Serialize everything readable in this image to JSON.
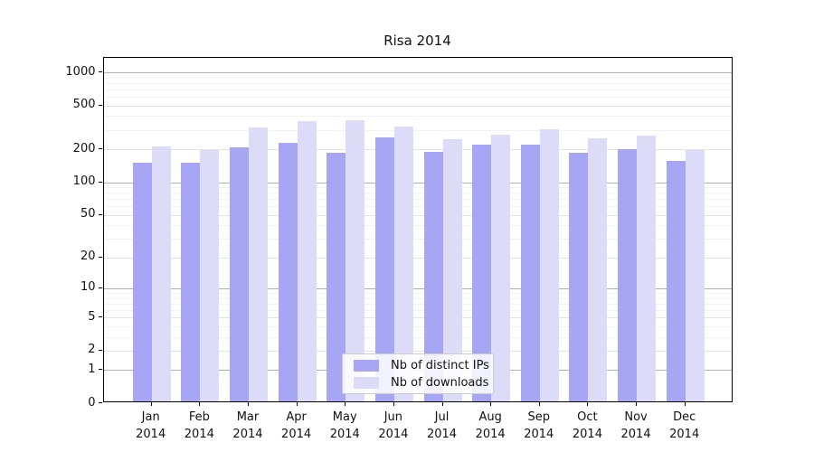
{
  "chart_data": {
    "type": "bar",
    "title": "Risa 2014",
    "categories": [
      "Jan",
      "Feb",
      "Mar",
      "Apr",
      "May",
      "Jun",
      "Jul",
      "Aug",
      "Sep",
      "Oct",
      "Nov",
      "Dec"
    ],
    "x_year": "2014",
    "series": [
      {
        "name": "Nb of distinct IPs",
        "color": "#a6a6f4",
        "values": [
          146,
          146,
          200,
          220,
          180,
          245,
          181,
          213,
          213,
          180,
          194,
          150
        ]
      },
      {
        "name": "Nb of downloads",
        "color": "#dcdcf9",
        "values": [
          203,
          188,
          303,
          345,
          356,
          310,
          239,
          263,
          293,
          242,
          258,
          188
        ]
      }
    ],
    "yscale": "log10(1+x)",
    "y_ticks": [
      0,
      1,
      2,
      5,
      10,
      20,
      50,
      100,
      200,
      500,
      1000
    ],
    "ylim": [
      0,
      1355
    ],
    "grid": "on",
    "legend_position": "inside-bottom-center",
    "grid_colors": {
      "decade": "#b0b0b0",
      "major": "#e3e3e3",
      "minor": "#f2f2f2"
    }
  }
}
